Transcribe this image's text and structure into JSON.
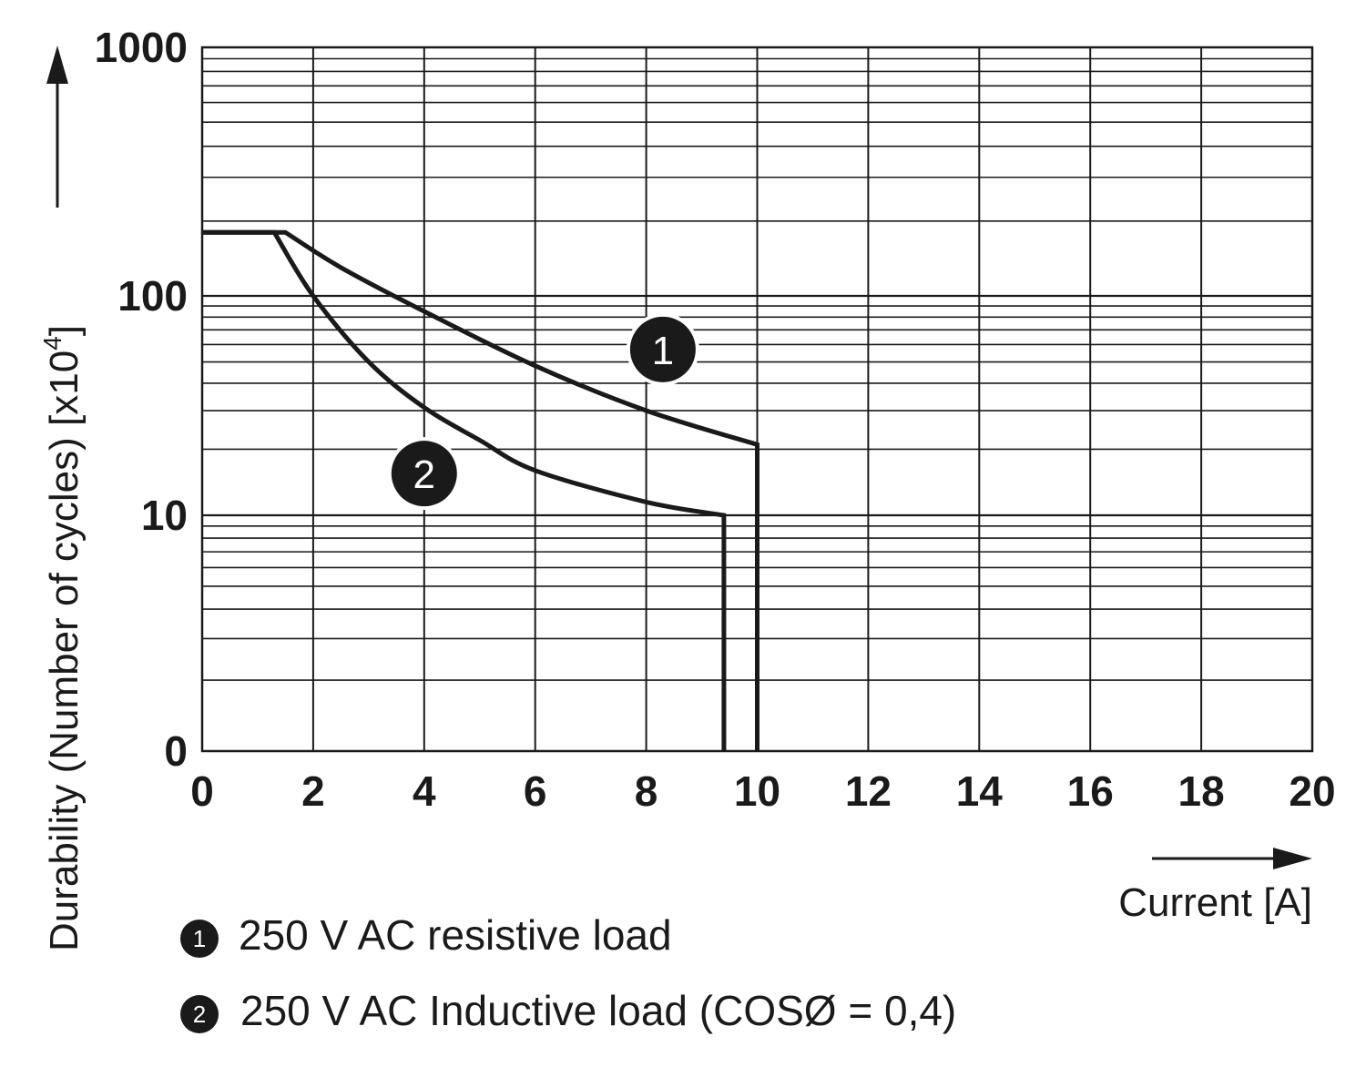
{
  "chart_data": {
    "type": "line",
    "xlabel": "Current [A]",
    "ylabel": "Durability (Number of cycles) [x10",
    "ylabel_sup": "4",
    "ylabel_end": "]",
    "x_ticks": [
      "0",
      "2",
      "4",
      "6",
      "8",
      "10",
      "12",
      "14",
      "16",
      "18",
      "20"
    ],
    "y_ticks": [
      "0",
      "10",
      "100",
      "1000"
    ],
    "xlim": [
      0,
      20
    ],
    "ylim": [
      0,
      1000
    ],
    "y_scale": "log (decades 1–10, 10–100, 100–1000)",
    "grid": true,
    "series": [
      {
        "marker": "1",
        "name": "250 V AC resistive load",
        "x": [
          0,
          1.5,
          2.5,
          4,
          6,
          8,
          10,
          10
        ],
        "y": [
          180,
          180,
          130,
          85,
          48,
          30,
          21,
          1
        ]
      },
      {
        "marker": "2",
        "name": "250 V AC Inductive load (COSØ = 0,4)",
        "x": [
          0,
          1.3,
          2,
          3,
          4,
          5,
          6,
          8,
          9.4,
          9.4
        ],
        "y": [
          180,
          180,
          100,
          50,
          31,
          22,
          16,
          11.5,
          10,
          1
        ]
      }
    ],
    "callouts": [
      {
        "label": "1",
        "x": 8.3,
        "y": 57
      },
      {
        "label": "2",
        "x": 4.0,
        "y": 15.5
      }
    ]
  },
  "colors": {
    "ink": "#1a1a1a",
    "background": "#ffffff"
  }
}
